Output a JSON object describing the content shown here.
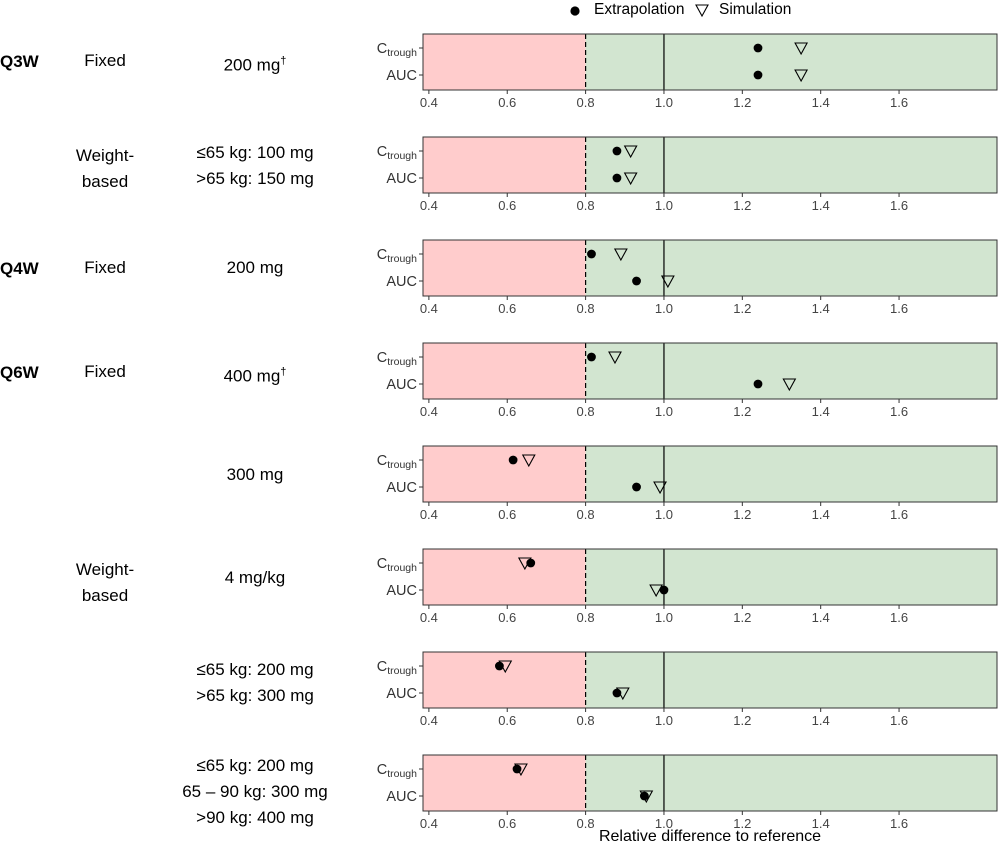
{
  "legend": {
    "extrapolation_label": "Extrapolation",
    "simulation_label": "Simulation"
  },
  "colors": {
    "bad_region": "#ffcccc",
    "good_region": "#d2e5d0",
    "marker": "#000000"
  },
  "chart_data": {
    "type": "scatter",
    "xlabel": "Relative difference to reference",
    "xlim": [
      0.385,
      1.85
    ],
    "xticks": [
      0.4,
      0.6,
      0.8,
      1.0,
      1.2,
      1.4,
      1.6
    ],
    "xtick_labels": [
      "0.4",
      "0.6",
      "0.8",
      "1.0",
      "1.2",
      "1.4",
      "1.6"
    ],
    "threshold": 0.8,
    "reference": 1.0,
    "series_names": [
      "Extrapolation",
      "Simulation"
    ],
    "metric_labels": {
      "ctrough_base": "C",
      "ctrough_sub": "trough",
      "auc": "AUC"
    },
    "panels": [
      {
        "schedule": "Q3W",
        "type_label": [
          "Fixed"
        ],
        "dose_lines": [
          "200 mg"
        ],
        "dose_dagger": true,
        "ctrough": {
          "extrapolation": 1.24,
          "simulation": 1.35
        },
        "auc": {
          "extrapolation": 1.24,
          "simulation": 1.35
        }
      },
      {
        "schedule": "",
        "type_label": [
          "Weight-",
          "based"
        ],
        "dose_lines": [
          "≤65 kg: 100 mg",
          ">65 kg: 150 mg"
        ],
        "dose_dagger": false,
        "ctrough": {
          "extrapolation": 0.88,
          "simulation": 0.915
        },
        "auc": {
          "extrapolation": 0.88,
          "simulation": 0.915
        }
      },
      {
        "schedule": "Q4W",
        "type_label": [
          "Fixed"
        ],
        "dose_lines": [
          "200 mg"
        ],
        "dose_dagger": false,
        "ctrough": {
          "extrapolation": 0.815,
          "simulation": 0.89
        },
        "auc": {
          "extrapolation": 0.93,
          "simulation": 1.01
        }
      },
      {
        "schedule": "Q6W",
        "type_label": [
          "Fixed"
        ],
        "dose_lines": [
          "400 mg"
        ],
        "dose_dagger": true,
        "ctrough": {
          "extrapolation": 0.815,
          "simulation": 0.875
        },
        "auc": {
          "extrapolation": 1.24,
          "simulation": 1.32
        }
      },
      {
        "schedule": "",
        "type_label": [],
        "dose_lines": [
          "300 mg"
        ],
        "dose_dagger": false,
        "ctrough": {
          "extrapolation": 0.615,
          "simulation": 0.655
        },
        "auc": {
          "extrapolation": 0.93,
          "simulation": 0.99
        }
      },
      {
        "schedule": "",
        "type_label": [
          "Weight-",
          "based"
        ],
        "dose_lines": [
          "4 mg/kg"
        ],
        "dose_dagger": false,
        "ctrough": {
          "extrapolation": 0.66,
          "simulation": 0.645
        },
        "auc": {
          "extrapolation": 1.0,
          "simulation": 0.98
        }
      },
      {
        "schedule": "",
        "type_label": [],
        "dose_lines": [
          "≤65 kg: 200 mg",
          ">65 kg: 300 mg"
        ],
        "dose_dagger": false,
        "ctrough": {
          "extrapolation": 0.58,
          "simulation": 0.595
        },
        "auc": {
          "extrapolation": 0.88,
          "simulation": 0.895
        }
      },
      {
        "schedule": "",
        "type_label": [],
        "dose_lines": [
          "≤65 kg: 200 mg",
          "65 – 90 kg: 300 mg",
          ">90 kg: 400 mg"
        ],
        "dose_dagger": false,
        "ctrough": {
          "extrapolation": 0.625,
          "simulation": 0.635
        },
        "auc": {
          "extrapolation": 0.95,
          "simulation": 0.955
        }
      }
    ]
  }
}
